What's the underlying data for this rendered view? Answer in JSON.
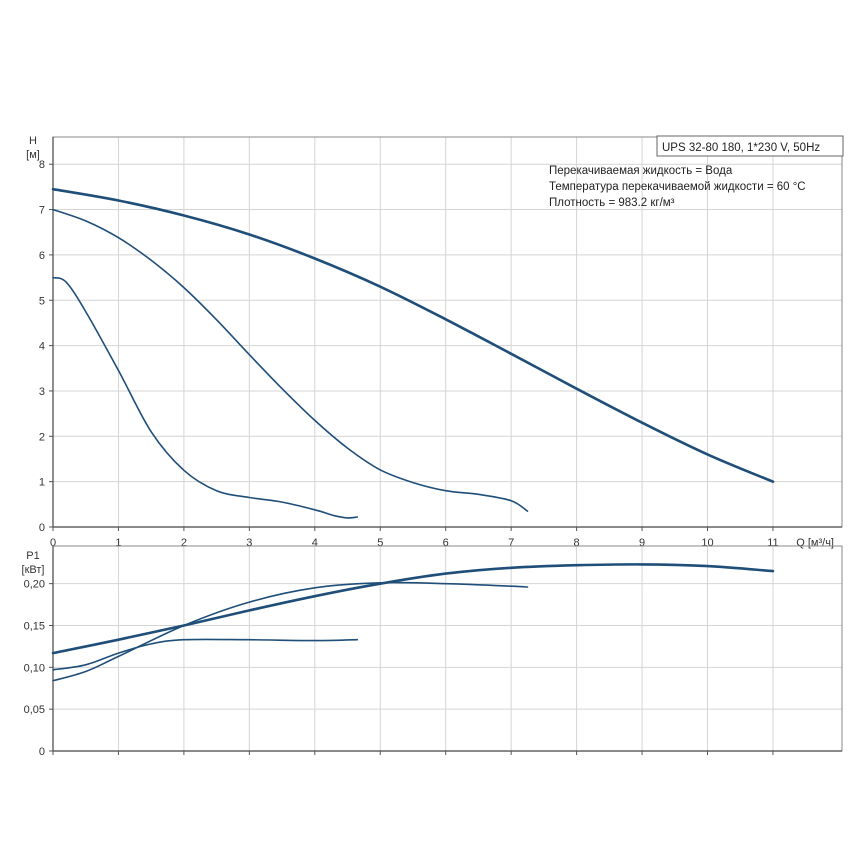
{
  "chart_data": [
    {
      "type": "line",
      "title": "",
      "info_box": {
        "model": "UPS 32-80 180, 1*230 V, 50Hz",
        "lines": [
          "Перекачиваемая жидкость = Вода",
          "Температура перекачиваемой жидкости = 60 °C",
          "Плотность = 983.2 кг/м³"
        ]
      },
      "ylabel": "H",
      "yunit": "[м]",
      "xlabel": "Q [м³/ч]",
      "xlim": [
        0,
        12
      ],
      "ylim": [
        0,
        8.6
      ],
      "xticks": [
        "0",
        "1",
        "2",
        "3",
        "4",
        "5",
        "6",
        "7",
        "8",
        "9",
        "10",
        "11"
      ],
      "yticks": [
        "0",
        "1",
        "2",
        "3",
        "4",
        "5",
        "6",
        "7",
        "8"
      ],
      "grid": true,
      "line_color": "#1f4e79",
      "series": [
        {
          "values": [
            [
              0,
              7.45
            ],
            [
              1,
              7.2
            ],
            [
              2,
              6.87
            ],
            [
              3,
              6.45
            ],
            [
              4,
              5.92
            ],
            [
              5,
              5.3
            ],
            [
              6,
              4.58
            ],
            [
              7,
              3.82
            ],
            [
              8,
              3.05
            ],
            [
              9,
              2.3
            ],
            [
              10,
              1.6
            ],
            [
              11,
              1.0
            ]
          ],
          "width": 2.6
        },
        {
          "values": [
            [
              0,
              7.0
            ],
            [
              0.5,
              6.75
            ],
            [
              1,
              6.38
            ],
            [
              1.5,
              5.88
            ],
            [
              2,
              5.28
            ],
            [
              2.5,
              4.57
            ],
            [
              3,
              3.8
            ],
            [
              3.5,
              3.05
            ],
            [
              4,
              2.35
            ],
            [
              4.5,
              1.74
            ],
            [
              5,
              1.26
            ],
            [
              5.5,
              0.98
            ],
            [
              6,
              0.8
            ],
            [
              6.5,
              0.72
            ],
            [
              7,
              0.58
            ],
            [
              7.25,
              0.35
            ]
          ],
          "width": 1.6
        },
        {
          "values": [
            [
              0,
              5.5
            ],
            [
              0.2,
              5.4
            ],
            [
              0.5,
              4.75
            ],
            [
              1,
              3.45
            ],
            [
              1.5,
              2.1
            ],
            [
              2,
              1.25
            ],
            [
              2.5,
              0.8
            ],
            [
              3,
              0.65
            ],
            [
              3.5,
              0.55
            ],
            [
              4,
              0.38
            ],
            [
              4.3,
              0.25
            ],
            [
              4.5,
              0.2
            ],
            [
              4.65,
              0.22
            ]
          ],
          "width": 1.6
        }
      ]
    },
    {
      "type": "line",
      "title": "",
      "ylabel": "P1",
      "yunit": "[кВт]",
      "xlim": [
        0,
        12
      ],
      "ylim": [
        0,
        0.245
      ],
      "yticks": [
        "0",
        "0,05",
        "0,10",
        "0,15",
        "0,20"
      ],
      "grid": true,
      "line_color": "#1f4e79",
      "series": [
        {
          "values": [
            [
              0,
              0.117
            ],
            [
              1,
              0.133
            ],
            [
              2,
              0.15
            ],
            [
              3,
              0.168
            ],
            [
              4,
              0.185
            ],
            [
              5,
              0.2
            ],
            [
              6,
              0.212
            ],
            [
              7,
              0.219
            ],
            [
              8,
              0.222
            ],
            [
              9,
              0.223
            ],
            [
              10,
              0.221
            ],
            [
              11,
              0.215
            ]
          ],
          "width": 2.6
        },
        {
          "values": [
            [
              0,
              0.084
            ],
            [
              0.5,
              0.095
            ],
            [
              1,
              0.113
            ],
            [
              2,
              0.15
            ],
            [
              3,
              0.178
            ],
            [
              4,
              0.195
            ],
            [
              5,
              0.201
            ],
            [
              6,
              0.2
            ],
            [
              7,
              0.197
            ],
            [
              7.25,
              0.196
            ]
          ],
          "width": 1.6
        },
        {
          "values": [
            [
              0,
              0.097
            ],
            [
              0.5,
              0.103
            ],
            [
              1,
              0.117
            ],
            [
              1.5,
              0.128
            ],
            [
              2,
              0.133
            ],
            [
              3,
              0.133
            ],
            [
              4,
              0.132
            ],
            [
              4.65,
              0.133
            ]
          ],
          "width": 1.6
        }
      ]
    }
  ]
}
